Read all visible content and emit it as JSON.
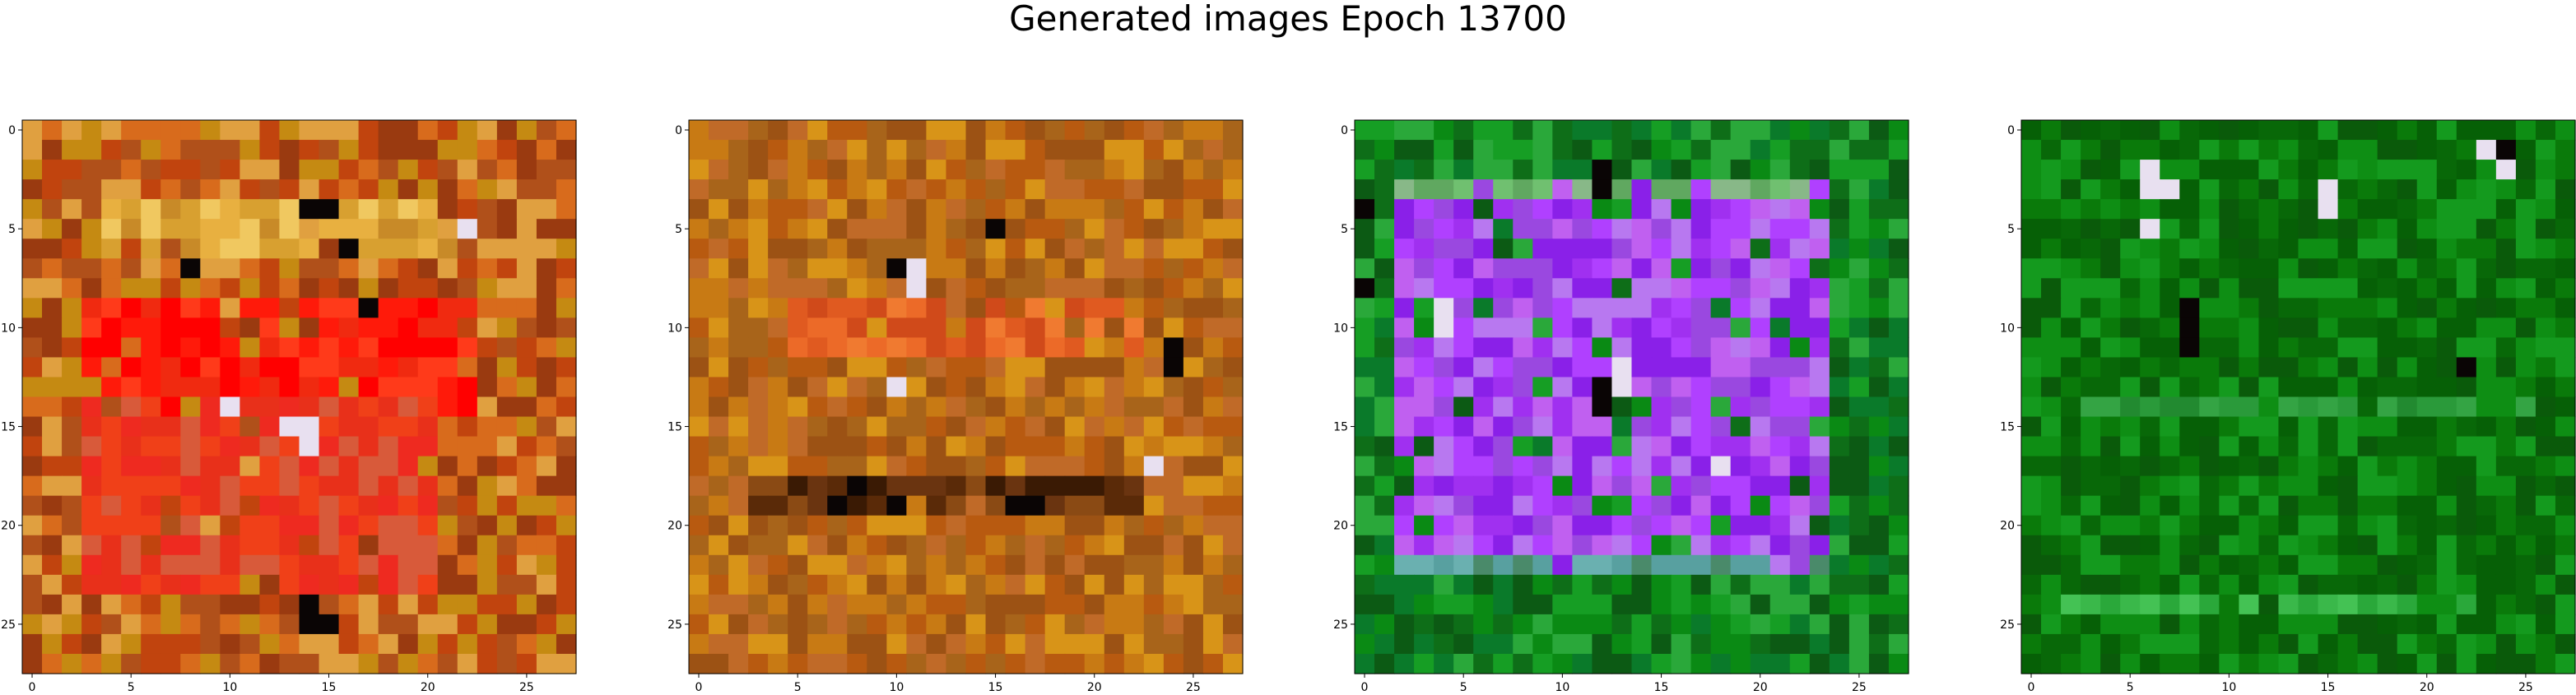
{
  "title": "Generated images Epoch 13700",
  "chart_data": [
    {
      "type": "heatmap",
      "name": "generated-image-1",
      "grid": [
        28,
        28
      ],
      "x_ticks": [
        0,
        5,
        10,
        15,
        20,
        25
      ],
      "y_ticks": [
        0,
        5,
        10,
        15,
        20,
        25
      ],
      "xlim": [
        -0.5,
        27.5
      ],
      "ylim": [
        27.5,
        -0.5
      ],
      "palette": [
        "#c1440e",
        "#d86b1c",
        "#c58a12",
        "#b0501a",
        "#e0a040",
        "#9a3a10"
      ],
      "regions": [
        {
          "rows": [
            9,
            14
          ],
          "cols": [
            3,
            22
          ],
          "colors": [
            "#ff1a0a",
            "#ff0000",
            "#f02a10",
            "#ff3a1a"
          ]
        },
        {
          "rows": [
            14,
            23
          ],
          "cols": [
            3,
            20
          ],
          "colors": [
            "#e8301a",
            "#f04018",
            "#d85a3a",
            "#ee2a20"
          ]
        },
        {
          "rows": [
            4,
            6
          ],
          "cols": [
            4,
            21
          ],
          "colors": [
            "#e8b040",
            "#f0c860",
            "#d8a030",
            "#c88a28"
          ]
        }
      ],
      "dark_cells": [
        [
          4,
          14
        ],
        [
          4,
          15
        ],
        [
          24,
          14
        ],
        [
          25,
          14
        ],
        [
          25,
          15
        ],
        [
          9,
          17
        ],
        [
          7,
          8
        ],
        [
          6,
          16
        ]
      ],
      "light_cells": [
        [
          14,
          10
        ],
        [
          15,
          13
        ],
        [
          15,
          14
        ],
        [
          16,
          14
        ],
        [
          5,
          22
        ]
      ]
    },
    {
      "type": "heatmap",
      "name": "generated-image-2",
      "grid": [
        28,
        28
      ],
      "x_ticks": [
        0,
        5,
        10,
        15,
        20,
        25
      ],
      "y_ticks": [
        0,
        5,
        10,
        15,
        20,
        25
      ],
      "xlim": [
        -0.5,
        27.5
      ],
      "ylim": [
        27.5,
        -0.5
      ],
      "palette": [
        "#c87a14",
        "#b85a10",
        "#d89418",
        "#a8641a",
        "#c06a28",
        "#9c5214"
      ],
      "regions": [
        {
          "rows": [
            9,
            11
          ],
          "cols": [
            5,
            22
          ],
          "colors": [
            "#e05a20",
            "#ec6a28",
            "#d04a1a",
            "#f07a30"
          ]
        },
        {
          "rows": [
            18,
            19
          ],
          "cols": [
            3,
            22
          ],
          "colors": [
            "#5a2a08",
            "#3a1a04",
            "#6a3410",
            "#8a4a14"
          ]
        }
      ],
      "dark_cells": [
        [
          5,
          15
        ],
        [
          7,
          10
        ],
        [
          11,
          24
        ],
        [
          12,
          24
        ],
        [
          19,
          7
        ],
        [
          19,
          16
        ],
        [
          19,
          17
        ],
        [
          19,
          10
        ],
        [
          18,
          8
        ]
      ],
      "light_cells": [
        [
          7,
          11
        ],
        [
          8,
          11
        ],
        [
          13,
          10
        ],
        [
          17,
          23
        ]
      ]
    },
    {
      "type": "heatmap",
      "name": "generated-image-3",
      "grid": [
        28,
        28
      ],
      "x_ticks": [
        0,
        5,
        10,
        15,
        20,
        25
      ],
      "y_ticks": [
        0,
        5,
        10,
        15,
        20,
        25
      ],
      "xlim": [
        -0.5,
        27.5
      ],
      "ylim": [
        27.5,
        -0.5
      ],
      "palette": [
        "#0a8a14",
        "#0e6e18",
        "#169e24",
        "#0c5a14",
        "#2aa83a",
        "#0a7a2a"
      ],
      "regions": [
        {
          "rows": [
            3,
            22
          ],
          "cols": [
            2,
            23
          ],
          "colors": [
            "#a030f0",
            "#b040ff",
            "#8a20e8",
            "#c060f0",
            "#9a48e0",
            "#b878f0"
          ]
        },
        {
          "rows": [
            3,
            3
          ],
          "cols": [
            2,
            23
          ],
          "colors": [
            "#70c070",
            "#60a860",
            "#88b888"
          ]
        },
        {
          "rows": [
            22,
            22
          ],
          "cols": [
            2,
            23
          ],
          "colors": [
            "#58a0a0",
            "#4a8a6a",
            "#6ab0b0"
          ]
        }
      ],
      "dark_cells": [
        [
          2,
          12
        ],
        [
          3,
          12
        ],
        [
          4,
          0
        ],
        [
          8,
          0
        ],
        [
          13,
          12
        ],
        [
          14,
          12
        ]
      ],
      "light_cells": [
        [
          9,
          4
        ],
        [
          10,
          4
        ],
        [
          12,
          13
        ],
        [
          13,
          13
        ],
        [
          17,
          18
        ]
      ]
    },
    {
      "type": "heatmap",
      "name": "generated-image-4",
      "grid": [
        28,
        28
      ],
      "x_ticks": [
        0,
        5,
        10,
        15,
        20,
        25
      ],
      "y_ticks": [
        0,
        5,
        10,
        15,
        20,
        25
      ],
      "xlim": [
        -0.5,
        27.5
      ],
      "ylim": [
        27.5,
        -0.5
      ],
      "palette": [
        "#0a7a0a",
        "#086808",
        "#0e8e14",
        "#0a5a0a",
        "#149a1e",
        "#066006"
      ],
      "regions": [
        {
          "rows": [
            14,
            14
          ],
          "cols": [
            3,
            25
          ],
          "colors": [
            "#2a9a3a",
            "#34a444",
            "#228a30"
          ]
        },
        {
          "rows": [
            24,
            24
          ],
          "cols": [
            2,
            22
          ],
          "colors": [
            "#3ab84a",
            "#44c254",
            "#2aa83a"
          ]
        }
      ],
      "dark_cells": [
        [
          1,
          24
        ],
        [
          9,
          8
        ],
        [
          10,
          8
        ],
        [
          11,
          8
        ],
        [
          12,
          22
        ]
      ],
      "light_cells": [
        [
          2,
          6
        ],
        [
          3,
          6
        ],
        [
          3,
          7
        ],
        [
          3,
          15
        ],
        [
          4,
          15
        ],
        [
          1,
          23
        ],
        [
          2,
          24
        ],
        [
          5,
          6
        ]
      ]
    }
  ]
}
